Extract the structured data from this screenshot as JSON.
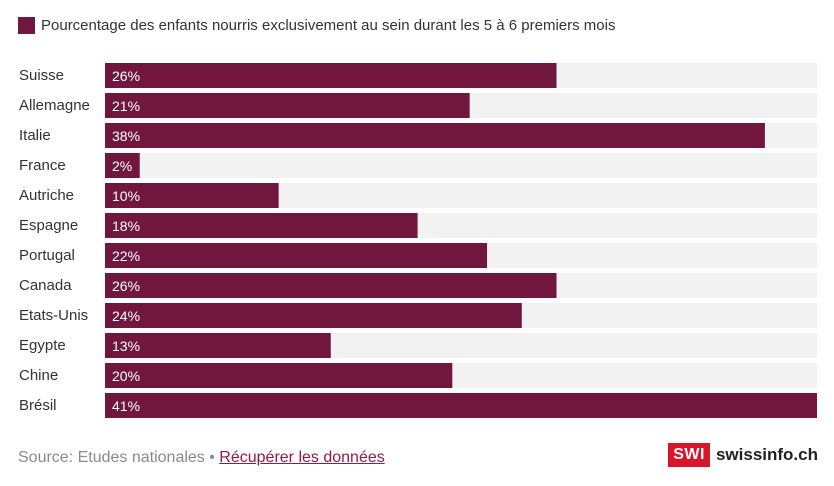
{
  "legend": {
    "label": "Pourcentage des enfants nourris exclusivement au sein durant les 5 à 6 premiers mois",
    "color": "#71173e"
  },
  "chart_data": {
    "type": "bar",
    "orientation": "horizontal",
    "categories": [
      "Suisse",
      "Allemagne",
      "Italie",
      "France",
      "Autriche",
      "Espagne",
      "Portugal",
      "Canada",
      "Etats-Unis",
      "Egypte",
      "Chine",
      "Brésil"
    ],
    "values": [
      26,
      21,
      38,
      2,
      10,
      18,
      22,
      26,
      24,
      13,
      20,
      41
    ],
    "value_labels": [
      "26%",
      "21%",
      "38%",
      "2%",
      "10%",
      "18%",
      "22%",
      "26%",
      "24%",
      "13%",
      "20%",
      "41%"
    ],
    "series": [
      {
        "name": "Pourcentage des enfants nourris exclusivement au sein durant les 5 à 6 premiers mois",
        "values": [
          26,
          21,
          38,
          2,
          10,
          18,
          22,
          26,
          24,
          13,
          20,
          41
        ]
      }
    ],
    "xlim": [
      0,
      41
    ],
    "grid": false,
    "legend_position": "top-left",
    "colors": {
      "bar": "#71173e",
      "track": "#f2f2f2"
    }
  },
  "footer": {
    "source_text": "Source: Etudes nationales •",
    "link_text": "Récupérer les données"
  },
  "brand": {
    "box_text": "SWI",
    "name": "swissinfo.ch"
  }
}
